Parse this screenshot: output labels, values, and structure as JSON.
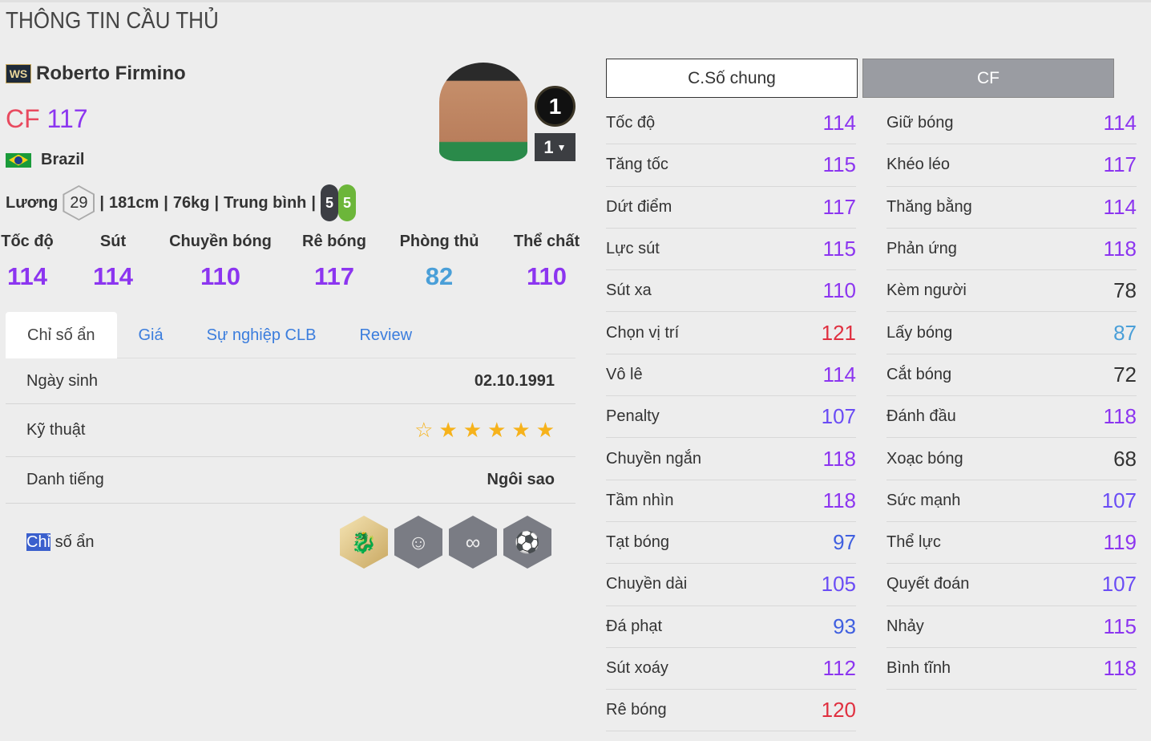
{
  "page_title": "THÔNG TIN CẦU THỦ",
  "player": {
    "season_badge": "WS",
    "name": "Roberto Firmino",
    "position": "CF",
    "ovr": "117",
    "nation": "Brazil",
    "salary_label": "Lương",
    "salary": "29",
    "height": "181cm",
    "weight": "76kg",
    "body_type": "Trung bình",
    "weak_foot_left": "5",
    "weak_foot_right": "5",
    "level": "1",
    "level_select": "1"
  },
  "summary": [
    {
      "label": "Tốc độ",
      "value": "114"
    },
    {
      "label": "Sút",
      "value": "114"
    },
    {
      "label": "Chuyền bóng",
      "value": "110"
    },
    {
      "label": "Rê bóng",
      "value": "117"
    },
    {
      "label": "Phòng thủ",
      "value": "82"
    },
    {
      "label": "Thể chất",
      "value": "110"
    }
  ],
  "tabs": [
    {
      "label": "Chỉ số ẩn"
    },
    {
      "label": "Giá"
    },
    {
      "label": "Sự nghiệp CLB"
    },
    {
      "label": "Review"
    }
  ],
  "details": {
    "birth_label": "Ngày sinh",
    "birth": "02.10.1991",
    "skill_label": "Kỹ thuật",
    "skill_stars": 6,
    "skill_filled": 5,
    "rep_label": "Danh tiếng",
    "rep": "Ngôi sao",
    "hidden_label_hl": "Chỉ",
    "hidden_label_rest": " số ẩn",
    "hidden_traits": [
      "dragon-dribble-icon",
      "hair-head-icon",
      "infinity-arrows-icon",
      "knuckle-shot-icon"
    ]
  },
  "stat_buttons": {
    "general": "C.Số chung",
    "position": "CF"
  },
  "colors": {
    "red": "#e03040",
    "purple": "#8c35f0",
    "violet": "#6a4cf5",
    "indigo": "#3f5fe0",
    "blue": "#4a9fd8",
    "dark": "#333333",
    "star": "#f6b21b"
  },
  "stats_left": [
    [
      "Tốc độ",
      "114"
    ],
    [
      "Tăng tốc",
      "115"
    ],
    [
      "Dứt điểm",
      "117"
    ],
    [
      "Lực sút",
      "115"
    ],
    [
      "Sút xa",
      "110"
    ],
    [
      "Chọn vị trí",
      "121"
    ],
    [
      "Vô lê",
      "114"
    ],
    [
      "Penalty",
      "107"
    ],
    [
      "Chuyền ngắn",
      "118"
    ],
    [
      "Tầm nhìn",
      "118"
    ],
    [
      "Tạt bóng",
      "97"
    ],
    [
      "Chuyền dài",
      "105"
    ],
    [
      "Đá phạt",
      "93"
    ],
    [
      "Sút xoáy",
      "112"
    ],
    [
      "Rê bóng",
      "120"
    ]
  ],
  "stats_right": [
    [
      "Giữ bóng",
      "114"
    ],
    [
      "Khéo léo",
      "117"
    ],
    [
      "Thăng bằng",
      "114"
    ],
    [
      "Phản ứng",
      "118"
    ],
    [
      "Kèm người",
      "78"
    ],
    [
      "Lấy bóng",
      "87"
    ],
    [
      "Cắt bóng",
      "72"
    ],
    [
      "Đánh đầu",
      "118"
    ],
    [
      "Xoạc bóng",
      "68"
    ],
    [
      "Sức mạnh",
      "107"
    ],
    [
      "Thể lực",
      "119"
    ],
    [
      "Quyết đoán",
      "107"
    ],
    [
      "Nhảy",
      "115"
    ],
    [
      "Bình tĩnh",
      "118"
    ]
  ]
}
